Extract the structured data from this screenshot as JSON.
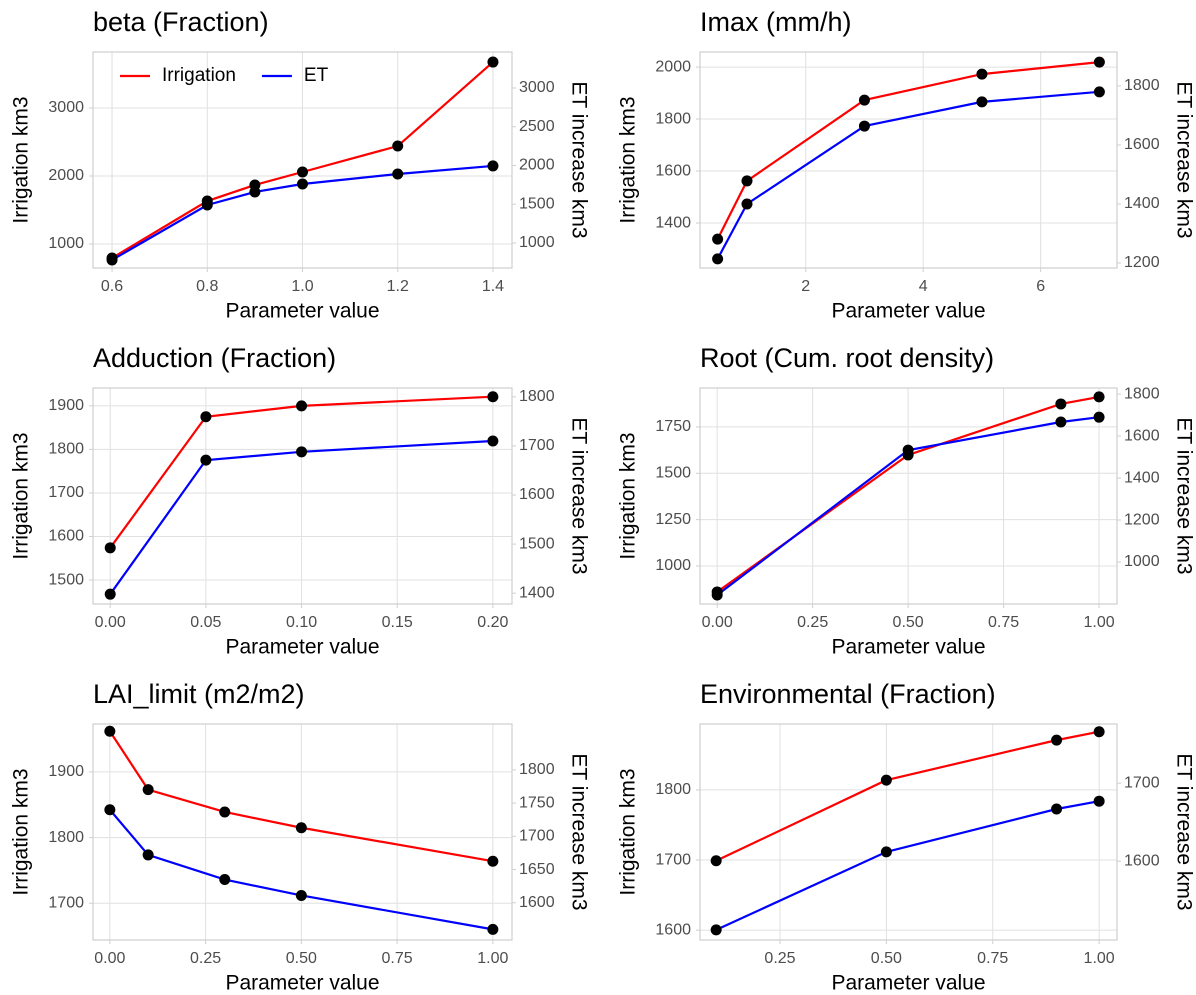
{
  "chart_data": [
    {
      "type": "line",
      "title": "beta (Fraction)",
      "xlabel": "Parameter value",
      "ylabel": "Irrigation km3",
      "y2label": "ET increase km3",
      "x": [
        0.6,
        0.8,
        0.9,
        1.0,
        1.2,
        1.4
      ],
      "series": [
        {
          "name": "Irrigation",
          "color": "#ff0000",
          "values": [
            794,
            1632,
            1868,
            2059,
            2441,
            3676
          ]
        },
        {
          "name": "ET",
          "color": "#0000ff",
          "axis": "y2",
          "values": [
            781,
            1490,
            1658,
            1761,
            1890,
            1994
          ]
        }
      ],
      "xlim": [
        0.56,
        1.44
      ],
      "xticks": [
        0.6,
        0.8,
        {
          "value": 1,
          "label": "1.0"
        },
        1.2,
        1.4
      ],
      "ylim": [
        647,
        3824
      ],
      "yticks": [
        1000,
        2000,
        3000
      ],
      "y2lim": [
        677,
        3464
      ],
      "y2ticks": [
        1000,
        1500,
        2000,
        2500,
        3000
      ],
      "grid": true,
      "legend": "top-left",
      "point_color": "#000000"
    },
    {
      "type": "line",
      "title": "Imax (mm/h)",
      "xlabel": "Parameter value",
      "ylabel": "Irrigation km3",
      "y2label": "ET increase km3",
      "x": [
        0.5,
        1,
        3,
        5,
        7
      ],
      "series": [
        {
          "color": "#ff0000",
          "values": [
            1338,
            1562,
            1873,
            1973,
            2019
          ]
        },
        {
          "color": "#0000ff",
          "axis": "y2",
          "values": [
            1214,
            1400,
            1664,
            1746,
            1780
          ]
        }
      ],
      "xlim": [
        0.2,
        7.3
      ],
      "xticks": [
        2,
        4,
        6
      ],
      "ylim": [
        1227,
        2058
      ],
      "yticks": [
        1400,
        1600,
        1800,
        2000
      ],
      "y2lim": [
        1183,
        1915
      ],
      "y2ticks": [
        1200,
        1400,
        1600,
        1800
      ],
      "grid": true,
      "point_color": "#000000"
    },
    {
      "type": "line",
      "title": "Adduction (Fraction)",
      "xlabel": "Parameter value",
      "ylabel": "Irrigation km3",
      "y2label": "ET increase km3",
      "x": [
        0,
        0.05,
        0.1,
        0.2
      ],
      "series": [
        {
          "color": "#ff0000",
          "values": [
            1574,
            1875,
            1900,
            1921
          ]
        },
        {
          "color": "#0000ff",
          "axis": "y2",
          "values": [
            1398,
            1671,
            1688,
            1710
          ]
        }
      ],
      "xlim": [
        -0.009,
        0.21
      ],
      "xticks": [
        {
          "value": 0,
          "label": "0.00"
        },
        {
          "value": 0.05,
          "label": "0.05"
        },
        {
          "value": 0.1,
          "label": "0.10"
        },
        {
          "value": 0.15,
          "label": "0.15"
        },
        {
          "value": 0.2,
          "label": "0.20"
        }
      ],
      "ylim": [
        1445,
        1941
      ],
      "yticks": [
        1500,
        1600,
        1700,
        1800,
        1900
      ],
      "y2lim": [
        1378,
        1818
      ],
      "y2ticks": [
        1400,
        1500,
        1600,
        1700,
        1800
      ],
      "grid": true,
      "point_color": "#000000"
    },
    {
      "type": "line",
      "title": "Root (Cum. root density)",
      "xlabel": "Parameter value",
      "ylabel": "Irrigation km3",
      "y2label": "ET increase km3",
      "x": [
        0,
        0.5,
        0.9,
        1
      ],
      "series": [
        {
          "color": "#ff0000",
          "values": [
            860,
            1599,
            1874,
            1912
          ]
        },
        {
          "color": "#0000ff",
          "axis": "y2",
          "values": [
            843,
            1533,
            1667,
            1690
          ]
        }
      ],
      "xlim": [
        -0.045,
        1.047
      ],
      "xticks": [
        {
          "value": 0,
          "label": "0.00"
        },
        {
          "value": 0.25,
          "label": "0.25"
        },
        {
          "value": 0.5,
          "label": "0.50"
        },
        {
          "value": 0.75,
          "label": "0.75"
        },
        {
          "value": 1,
          "label": "1.00"
        }
      ],
      "ylim": [
        795,
        1960
      ],
      "yticks": [
        1000,
        1250,
        1500,
        1750
      ],
      "y2lim": [
        800,
        1829
      ],
      "y2ticks": [
        1000,
        1200,
        1400,
        1600,
        1800
      ],
      "grid": true,
      "point_color": "#000000"
    },
    {
      "type": "line",
      "title": "LAI_limit (m2/m2)",
      "xlabel": "Parameter value",
      "ylabel": "Irrigation km3",
      "y2label": "ET increase km3",
      "x": [
        0,
        0.1,
        0.3,
        0.5,
        1
      ],
      "series": [
        {
          "color": "#ff0000",
          "values": [
            1962,
            1873,
            1839,
            1815,
            1764
          ]
        },
        {
          "color": "#0000ff",
          "axis": "y2",
          "values": [
            1740,
            1672,
            1635,
            1611,
            1560
          ]
        }
      ],
      "xlim": [
        -0.044,
        1.05
      ],
      "xticks": [
        {
          "value": 0,
          "label": "0.00"
        },
        {
          "value": 0.25,
          "label": "0.25"
        },
        {
          "value": 0.5,
          "label": "0.50"
        },
        {
          "value": 0.75,
          "label": "0.75"
        },
        {
          "value": 1,
          "label": "1.00"
        }
      ],
      "ylim": [
        1644,
        1973
      ],
      "yticks": [
        1700,
        1800,
        1900
      ],
      "y2lim": [
        1544,
        1869
      ],
      "y2ticks": [
        1600,
        1650,
        1700,
        1750,
        1800
      ],
      "grid": true,
      "point_color": "#000000"
    },
    {
      "type": "line",
      "title": "Environmental (Fraction)",
      "xlabel": "Parameter value",
      "ylabel": "Irrigation km3",
      "y2label": "ET increase km3",
      "x": [
        0.1,
        0.5,
        0.9,
        1
      ],
      "series": [
        {
          "color": "#ff0000",
          "values": [
            1699,
            1814,
            1871,
            1883
          ]
        },
        {
          "color": "#0000ff",
          "axis": "y2",
          "values": [
            1512,
            1612,
            1667,
            1677
          ]
        }
      ],
      "xlim": [
        0.062,
        1.042
      ],
      "xticks": [
        {
          "value": 0.25,
          "label": "0.25"
        },
        {
          "value": 0.5,
          "label": "0.50"
        },
        {
          "value": 0.75,
          "label": "0.75"
        },
        {
          "value": 1,
          "label": "1.00"
        }
      ],
      "ylim": [
        1586,
        1894
      ],
      "yticks": [
        1600,
        1700,
        1800
      ],
      "y2lim": [
        1499,
        1776
      ],
      "y2ticks": [
        1600,
        1700
      ],
      "grid": true,
      "point_color": "#000000"
    }
  ]
}
